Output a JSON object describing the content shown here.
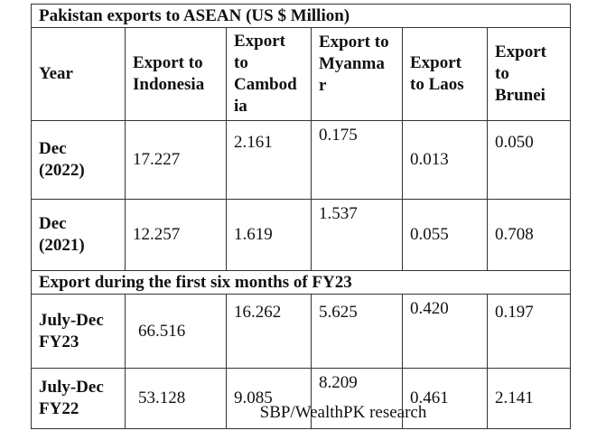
{
  "table": {
    "title": "Pakistan exports to ASEAN (US $ Million)",
    "headers": [
      "Year",
      "Export to\nIndonesia",
      "Export\nto\nCambod\nia",
      "Export to\nMyanma\nr",
      "Export\nto Laos",
      "Export\nto\nBrunei"
    ],
    "rows_annual": [
      {
        "year": "Dec\n(2022)",
        "values": [
          "17.227",
          "2.161",
          "0.175",
          "0.013",
          "0.050"
        ]
      },
      {
        "year": "Dec\n(2021)",
        "values": [
          "12.257",
          "1.619",
          "1.537",
          "0.055",
          "0.708"
        ]
      }
    ],
    "section_title": "Export during the first six months of FY23",
    "rows_fy": [
      {
        "year": "July-Dec\nFY23",
        "values": [
          "66.516",
          "16.262",
          "5.625",
          "0.420",
          "0.197"
        ]
      },
      {
        "year": "July-Dec\nFY22",
        "values": [
          "53.128",
          "9.085",
          "8.209",
          "0.461",
          "2.141"
        ]
      }
    ]
  },
  "source": "SBP/WealthPK research"
}
